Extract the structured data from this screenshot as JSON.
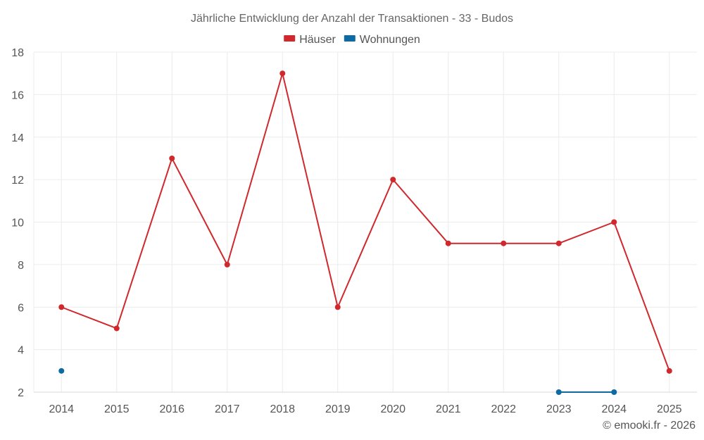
{
  "chart_data": {
    "type": "line",
    "title": "Jährliche Entwicklung der Anzahl der Transaktionen - 33 - Budos",
    "categories": [
      "2014",
      "2015",
      "2016",
      "2017",
      "2018",
      "2019",
      "2020",
      "2021",
      "2022",
      "2023",
      "2024",
      "2025"
    ],
    "series": [
      {
        "name": "Häuser",
        "color": "#d0282c",
        "values": [
          6,
          5,
          13,
          8,
          17,
          6,
          12,
          9,
          9,
          9,
          10,
          3
        ]
      },
      {
        "name": "Wohnungen",
        "color": "#0e6aa3",
        "values": [
          3,
          null,
          null,
          null,
          null,
          null,
          null,
          null,
          null,
          2,
          2,
          null
        ]
      }
    ],
    "ylim": [
      2,
      18
    ],
    "yticks": [
      2,
      4,
      6,
      8,
      10,
      12,
      14,
      16,
      18
    ],
    "grid": true,
    "legend_position": "top-center",
    "credit": "© emooki.fr - 2026"
  }
}
